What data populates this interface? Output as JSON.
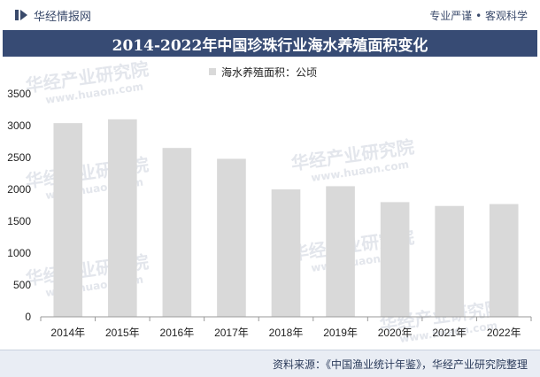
{
  "header": {
    "brand": "华经情报网",
    "slogan_left": "专业严谨",
    "slogan_sep": "•",
    "slogan_right": "客观科学",
    "logo_color": "#3a4a6b"
  },
  "chart_data": {
    "type": "bar",
    "title": "2014-2022年中国珍珠行业海水养殖面积变化",
    "categories": [
      "2014年",
      "2015年",
      "2016年",
      "2017年",
      "2018年",
      "2019年",
      "2020年",
      "2021年",
      "2022年"
    ],
    "series": [
      {
        "name": "海水养殖面积：公顷",
        "values": [
          3040,
          3100,
          2650,
          2480,
          2000,
          2050,
          1800,
          1740,
          1770
        ],
        "color": "#d9d9d9"
      }
    ],
    "ylim": [
      0,
      3500
    ],
    "yticks": [
      0,
      500,
      1000,
      1500,
      2000,
      2500,
      3000,
      3500
    ],
    "grid": false,
    "legend": "top-center"
  },
  "footer": {
    "source": "资料来源：《中国渔业统计年鉴》，华经产业研究院整理"
  },
  "watermark": {
    "cn": "华经产业研究院",
    "en": "www.huaon.com"
  }
}
